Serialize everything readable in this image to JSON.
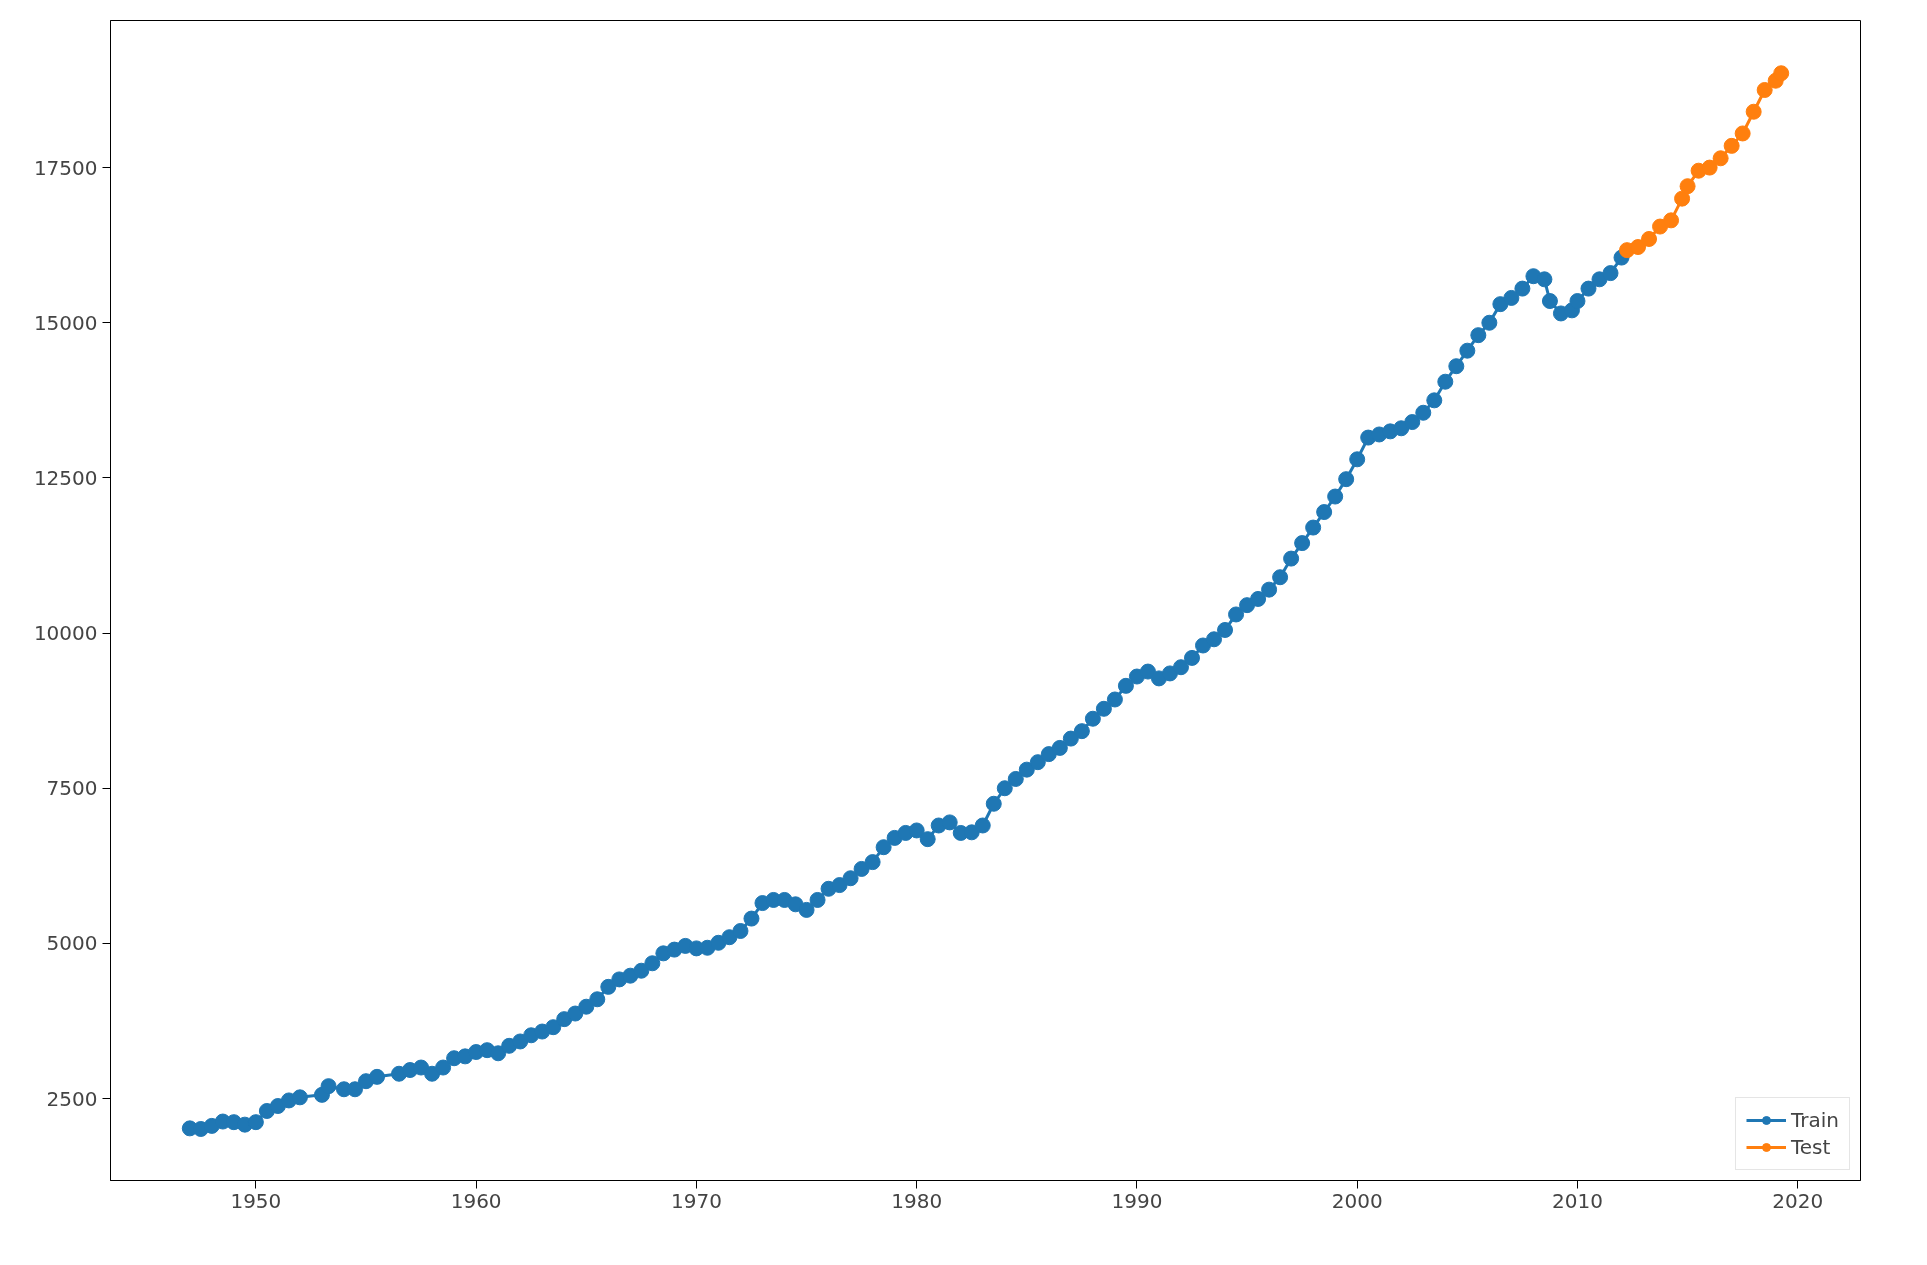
{
  "chart_data": {
    "type": "line",
    "marker": "circle",
    "line_style": "solid",
    "legend": "bottom right",
    "grid": false,
    "xlim": [
      1943.4,
      2022.85
    ],
    "ylim": [
      1180,
      19870
    ],
    "xticks": [
      1950,
      1960,
      1970,
      1980,
      1990,
      2000,
      2010,
      2020
    ],
    "yticks": [
      2500,
      5000,
      7500,
      10000,
      12500,
      15000,
      17500
    ],
    "series": [
      {
        "name": "Train",
        "color": "#1f77b4",
        "x": [
          1947.0,
          1947.5,
          1948.0,
          1948.5,
          1949.0,
          1949.5,
          1950.0,
          1950.5,
          1951.0,
          1951.5,
          1952.0,
          1953.0,
          1953.3,
          1954.0,
          1954.5,
          1955.0,
          1955.5,
          1956.5,
          1957.0,
          1957.5,
          1958.0,
          1958.5,
          1959.0,
          1959.5,
          1960.0,
          1960.5,
          1961.0,
          1961.5,
          1962.0,
          1962.5,
          1963.0,
          1963.5,
          1964.0,
          1964.5,
          1965.0,
          1965.5,
          1966.0,
          1966.5,
          1967.0,
          1967.5,
          1968.0,
          1968.5,
          1969.0,
          1969.5,
          1970.0,
          1970.5,
          1971.0,
          1971.5,
          1972.0,
          1972.5,
          1973.0,
          1973.5,
          1974.0,
          1974.5,
          1975.0,
          1975.5,
          1976.0,
          1976.5,
          1977.0,
          1977.5,
          1978.0,
          1978.5,
          1979.0,
          1979.5,
          1980.0,
          1980.5,
          1981.0,
          1981.5,
          1982.0,
          1982.5,
          1983.0,
          1983.5,
          1984.0,
          1984.5,
          1985.0,
          1985.5,
          1986.0,
          1986.5,
          1987.0,
          1987.5,
          1988.0,
          1988.5,
          1989.0,
          1989.5,
          1990.0,
          1990.5,
          1991.0,
          1991.5,
          1992.0,
          1992.5,
          1993.0,
          1993.5,
          1994.0,
          1994.5,
          1995.0,
          1995.5,
          1996.0,
          1996.5,
          1997.0,
          1997.5,
          1998.0,
          1998.5,
          1999.0,
          1999.5,
          2000.0,
          2000.5,
          2001.0,
          2001.5,
          2002.0,
          2002.5,
          2003.0,
          2003.5,
          2004.0,
          2004.5,
          2005.0,
          2005.5,
          2006.0,
          2006.5,
          2007.0,
          2007.5,
          2008.0,
          2008.5,
          2008.75,
          2009.25,
          2009.75,
          2010.0,
          2010.5,
          2011.0,
          2011.5,
          2012.0
        ],
        "values": [
          2020,
          2010,
          2060,
          2130,
          2120,
          2080,
          2120,
          2300,
          2380,
          2470,
          2520,
          2560,
          2700,
          2650,
          2650,
          2780,
          2850,
          2900,
          2960,
          3000,
          2900,
          3000,
          3150,
          3180,
          3250,
          3280,
          3230,
          3350,
          3420,
          3520,
          3580,
          3650,
          3780,
          3870,
          3980,
          4100,
          4300,
          4420,
          4480,
          4560,
          4680,
          4840,
          4900,
          4960,
          4920,
          4930,
          5010,
          5100,
          5200,
          5400,
          5650,
          5700,
          5700,
          5630,
          5540,
          5700,
          5880,
          5940,
          6050,
          6200,
          6310,
          6550,
          6700,
          6780,
          6820,
          6680,
          6900,
          6950,
          6780,
          6790,
          6900,
          7250,
          7500,
          7650,
          7800,
          7920,
          8050,
          8150,
          8300,
          8420,
          8620,
          8780,
          8930,
          9150,
          9300,
          9380,
          9270,
          9350,
          9450,
          9600,
          9800,
          9900,
          10050,
          10300,
          10450,
          10550,
          10700,
          10900,
          11200,
          11450,
          11700,
          11950,
          12200,
          12480,
          12800,
          13150,
          13200,
          13250,
          13300,
          13400,
          13550,
          13750,
          14050,
          14300,
          14550,
          14800,
          15000,
          15300,
          15400,
          15550,
          15750,
          15700,
          15350,
          15150,
          15200,
          15350,
          15550,
          15700,
          15800,
          16050
        ]
      },
      {
        "name": "Test",
        "color": "#ff7f0e",
        "x": [
          2012.25,
          2012.75,
          2013.25,
          2013.75,
          2014.25,
          2014.75,
          2015.0,
          2015.5,
          2016.0,
          2016.5,
          2017.0,
          2017.5,
          2018.0,
          2018.5,
          2019.0,
          2019.25
        ],
        "values": [
          16170,
          16220,
          16350,
          16550,
          16650,
          17000,
          17200,
          17450,
          17500,
          17650,
          17850,
          18050,
          18400,
          18750,
          18900,
          19020
        ]
      }
    ]
  }
}
